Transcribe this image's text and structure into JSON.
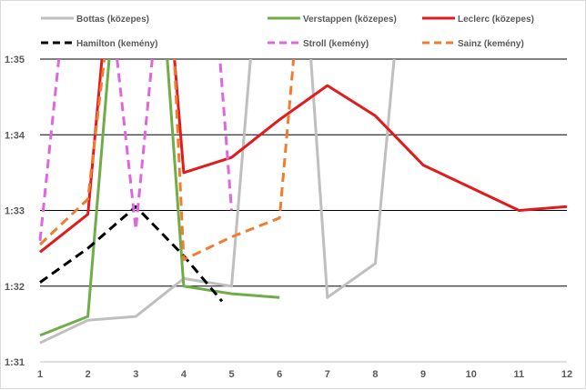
{
  "chart_data": {
    "type": "line",
    "title": "",
    "xlabel": "",
    "ylabel": "",
    "x": [
      1,
      2,
      3,
      4,
      5,
      6,
      7,
      8,
      9,
      10,
      11,
      12
    ],
    "x_tick_labels": [
      "1",
      "2",
      "3",
      "4",
      "5",
      "6",
      "7",
      "8",
      "9",
      "10",
      "11",
      "12"
    ],
    "xlim": [
      1,
      12
    ],
    "ylim_seconds": [
      91,
      95
    ],
    "y_ticks_seconds": [
      91,
      92,
      93,
      94,
      95
    ],
    "y_tick_labels": [
      "1:31",
      "1:32",
      "1:33",
      "1:34",
      "1:35"
    ],
    "grid": "horizontal",
    "legend_position": "top",
    "series": [
      {
        "name": "Bottas (közepes)",
        "color": "#bfbfbf",
        "dash": "solid",
        "points": [
          [
            1,
            91.25
          ],
          [
            2,
            91.55
          ],
          [
            3,
            91.6
          ],
          [
            4,
            92.1
          ],
          [
            5,
            92.0
          ],
          [
            5.4,
            95.05
          ],
          [
            6.65,
            95.05
          ],
          [
            7,
            91.85
          ],
          [
            8,
            92.3
          ],
          [
            8.4,
            95.05
          ]
        ]
      },
      {
        "name": "Verstappen (közepes)",
        "color": "#70ad47",
        "dash": "solid",
        "points": [
          [
            1,
            91.35
          ],
          [
            2,
            91.6
          ],
          [
            2.45,
            95.05
          ],
          [
            3.65,
            95.05
          ],
          [
            4,
            92.0
          ],
          [
            5,
            91.9
          ],
          [
            6,
            91.85
          ]
        ]
      },
      {
        "name": "Leclerc (közepes)",
        "color": "#e31a1c",
        "dash": "solid",
        "points": [
          [
            1,
            92.45
          ],
          [
            2,
            92.95
          ],
          [
            2.3,
            95.05
          ],
          [
            3.8,
            95.05
          ],
          [
            4,
            93.5
          ],
          [
            5,
            93.7
          ],
          [
            6,
            94.2
          ],
          [
            7,
            94.65
          ],
          [
            8,
            94.25
          ],
          [
            9,
            93.6
          ],
          [
            10,
            93.3
          ],
          [
            11,
            93.0
          ],
          [
            12,
            93.05
          ]
        ]
      },
      {
        "name": "Hamilton (kemény)",
        "color": "#000000",
        "dash": "dash",
        "points": [
          [
            1,
            92.05
          ],
          [
            2,
            92.5
          ],
          [
            3,
            93.05
          ],
          [
            4,
            92.4
          ],
          [
            4.8,
            91.8
          ]
        ]
      },
      {
        "name": "Stroll (kemény)",
        "color": "#e066e0",
        "dash": "dash",
        "points": [
          [
            1,
            92.6
          ],
          [
            1.4,
            95.05
          ],
          [
            2.6,
            95.05
          ],
          [
            3,
            92.75
          ],
          [
            3.35,
            95.05
          ],
          [
            4.75,
            95.05
          ],
          [
            5,
            93.0
          ]
        ]
      },
      {
        "name": "Sainz (kemény)",
        "color": "#ed7d31",
        "dash": "dash",
        "points": [
          [
            1,
            92.55
          ],
          [
            2,
            93.15
          ],
          [
            2.35,
            95.05
          ],
          [
            3.8,
            95.05
          ],
          [
            4,
            92.35
          ],
          [
            5,
            92.65
          ],
          [
            6,
            92.9
          ],
          [
            6.3,
            95.05
          ]
        ]
      }
    ]
  }
}
